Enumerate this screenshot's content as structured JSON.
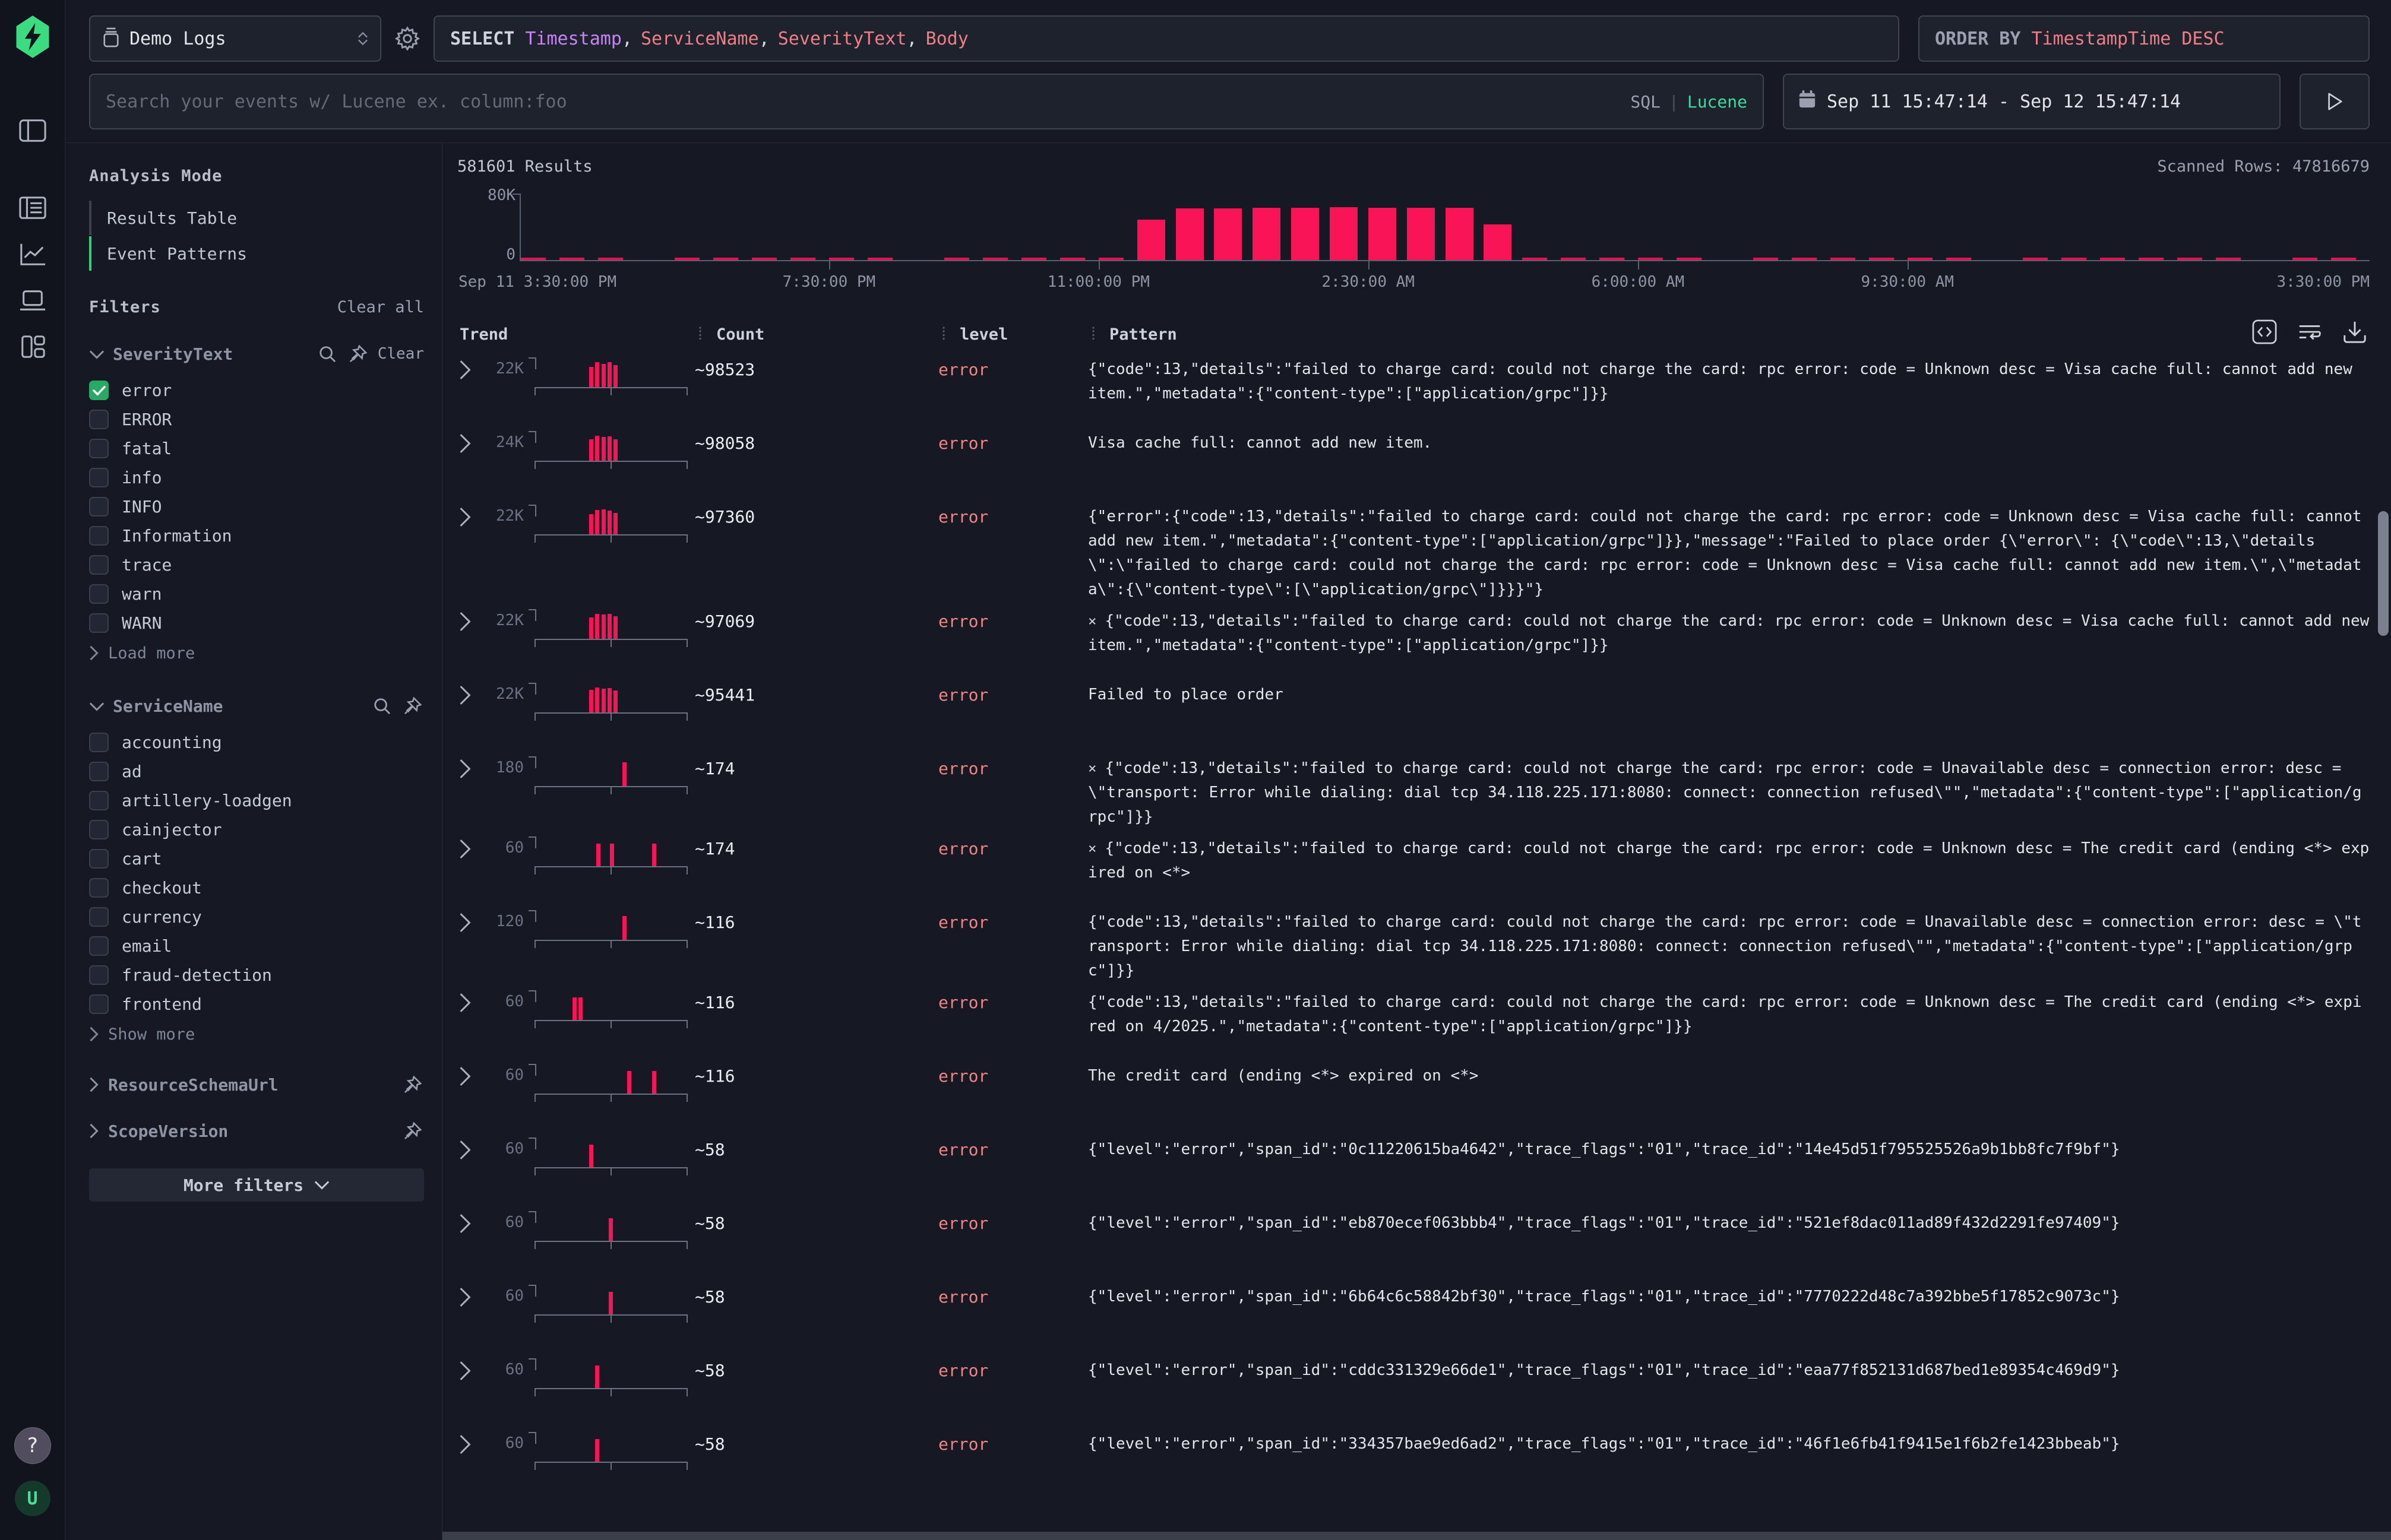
{
  "colors": {
    "accent_green": "#3adc7f",
    "bar_pink": "#f91357",
    "error_text": "#ef8585",
    "purple": "#c585f2",
    "salmon": "#ef7e86"
  },
  "icons": {
    "logo": "hyperdx-hexagon-bolt",
    "sidebar-toggle": "panel-left",
    "logs": "newspaper",
    "chart": "line-chart",
    "sessions": "laptop",
    "dashboards": "layout-grid",
    "help": "?",
    "avatar": "U",
    "source": "database",
    "settings": "gear",
    "calendar": "calendar",
    "run": "play-triangle",
    "search": "magnifier",
    "pin": "pushpin",
    "code": "<>",
    "wrap": "text-wrap-arrow",
    "download": "arrow-into-tray",
    "close": "×"
  },
  "topbar": {
    "source_select": {
      "label": "Demo Logs"
    },
    "query": {
      "keyword": "SELECT",
      "fields": [
        {
          "text": "Timestamp",
          "color": "#c585f2"
        },
        {
          "text": "ServiceName",
          "color": "#ef7e86"
        },
        {
          "text": "SeverityText",
          "color": "#ef7e86"
        },
        {
          "text": "Body",
          "color": "#ef7e86"
        }
      ]
    },
    "order_by": {
      "keyword": "ORDER BY",
      "value": "TimestampTime DESC"
    }
  },
  "searchbar": {
    "placeholder": "Search your events w/ Lucene ex. column:foo",
    "mode_sql": "SQL",
    "mode_divider": "|",
    "mode_lucene": "Lucene",
    "date_range": "Sep 11 15:47:14 - Sep 12 15:47:14"
  },
  "sidebar": {
    "analysis_mode": {
      "title": "Analysis Mode",
      "items": [
        {
          "label": "Results Table",
          "active": false
        },
        {
          "label": "Event Patterns",
          "active": true
        }
      ]
    },
    "filters_title": "Filters",
    "clear_all": "Clear all",
    "severity": {
      "name": "SeverityText",
      "clear": "Clear",
      "load_more": "Load more",
      "options": [
        {
          "label": "error",
          "checked": true
        },
        {
          "label": "ERROR",
          "checked": false
        },
        {
          "label": "fatal",
          "checked": false
        },
        {
          "label": "info",
          "checked": false
        },
        {
          "label": "INFO",
          "checked": false
        },
        {
          "label": "Information",
          "checked": false
        },
        {
          "label": "trace",
          "checked": false
        },
        {
          "label": "warn",
          "checked": false
        },
        {
          "label": "WARN",
          "checked": false
        }
      ]
    },
    "service": {
      "name": "ServiceName",
      "show_more": "Show more",
      "options": [
        {
          "label": "accounting",
          "checked": false
        },
        {
          "label": "ad",
          "checked": false
        },
        {
          "label": "artillery-loadgen",
          "checked": false
        },
        {
          "label": "cainjector",
          "checked": false
        },
        {
          "label": "cart",
          "checked": false
        },
        {
          "label": "checkout",
          "checked": false
        },
        {
          "label": "currency",
          "checked": false
        },
        {
          "label": "email",
          "checked": false
        },
        {
          "label": "fraud-detection",
          "checked": false
        },
        {
          "label": "frontend",
          "checked": false
        }
      ]
    },
    "collapsed_groups": [
      {
        "name": "ResourceSchemaUrl"
      },
      {
        "name": "ScopeVersion"
      }
    ],
    "more_filters": "More filters"
  },
  "results": {
    "count_label": "581601 Results",
    "scanned_label": "Scanned Rows: 47816679"
  },
  "chart_data": {
    "type": "bar",
    "title": "Events over time histogram",
    "ylim": [
      0,
      80000
    ],
    "ytick_labels": [
      "80K",
      "0"
    ],
    "bucket_minutes": 30,
    "x_range": [
      "Sep 11 3:30:00 PM",
      "Sep 12 3:30:00 PM"
    ],
    "x_tick_labels": [
      {
        "t": "Sep 11 3:30:00 PM",
        "f": 0.0
      },
      {
        "t": "7:30:00 PM",
        "f": 0.1667
      },
      {
        "t": "11:00:00 PM",
        "f": 0.3125
      },
      {
        "t": "2:30:00 AM",
        "f": 0.4583
      },
      {
        "t": "6:00:00 AM",
        "f": 0.6042
      },
      {
        "t": "9:30:00 AM",
        "f": 0.75
      },
      {
        "t": "3:30:00 PM",
        "f": 1.0
      }
    ],
    "bars": [
      {
        "time": "11:30 PM",
        "value": 48000,
        "f": 0.3333
      },
      {
        "time": "12:00 AM",
        "value": 61000,
        "f": 0.3542
      },
      {
        "time": "12:30 AM",
        "value": 61000,
        "f": 0.375
      },
      {
        "time": "1:00 AM",
        "value": 62000,
        "f": 0.3958
      },
      {
        "time": "1:30 AM",
        "value": 62000,
        "f": 0.4167
      },
      {
        "time": "2:00 AM",
        "value": 62500,
        "f": 0.4375
      },
      {
        "time": "2:30 AM",
        "value": 62000,
        "f": 0.4583
      },
      {
        "time": "3:00 AM",
        "value": 62000,
        "f": 0.4792
      },
      {
        "time": "3:30 AM",
        "value": 61500,
        "f": 0.5
      },
      {
        "time": "4:00 AM",
        "value": 42000,
        "f": 0.5208
      }
    ],
    "baseline_small_values": true,
    "grid": false,
    "legend": false
  },
  "table": {
    "columns": [
      "Trend",
      "Count",
      "level",
      "Pattern"
    ],
    "rows": [
      {
        "trend_max": "22K",
        "bars": [
          [
            0.36,
            0.82
          ],
          [
            0.4,
            1
          ],
          [
            0.44,
            0.93
          ],
          [
            0.48,
            1
          ],
          [
            0.52,
            0.88
          ]
        ],
        "count": "~98523",
        "level": "error",
        "has_x": false,
        "pattern": "{\"code\":13,\"details\":\"failed to charge card: could not charge the card: rpc error: code = Unknown desc = Visa cache full: cannot add new item.\",\"metadata\":{\"content-type\":[\"application/grpc\"]}}"
      },
      {
        "trend_max": "24K",
        "bars": [
          [
            0.36,
            0.85
          ],
          [
            0.4,
            1
          ],
          [
            0.44,
            0.95
          ],
          [
            0.48,
            0.98
          ],
          [
            0.52,
            0.85
          ]
        ],
        "count": "~98058",
        "level": "error",
        "has_x": false,
        "pattern": "Visa cache full: cannot add new item."
      },
      {
        "trend_max": "22K",
        "bars": [
          [
            0.36,
            0.8
          ],
          [
            0.4,
            0.97
          ],
          [
            0.44,
            1
          ],
          [
            0.48,
            0.95
          ],
          [
            0.52,
            0.85
          ]
        ],
        "count": "~97360",
        "level": "error",
        "has_x": false,
        "pattern": "{\"error\":{\"code\":13,\"details\":\"failed to charge card: could not charge the card: rpc error: code = Unknown desc = Visa cache full: cannot add new item.\",\"metadata\":{\"content-type\":[\"application/grpc\"]}},\"message\":\"Failed to place order {\\\"error\\\": {\\\"code\\\":13,\\\"details\\\":\\\"failed to charge card: could not charge the card: rpc error: code = Unknown desc = Visa cache full: cannot add new item.\\\",\\\"metadata\\\":{\\\"content-type\\\":[\\\"application/grpc\\\"]}}}\"}"
      },
      {
        "trend_max": "22K",
        "bars": [
          [
            0.36,
            0.85
          ],
          [
            0.4,
            1
          ],
          [
            0.44,
            0.97
          ],
          [
            0.48,
            1
          ],
          [
            0.52,
            0.9
          ]
        ],
        "count": "~97069",
        "level": "error",
        "has_x": true,
        "pattern": "{\"code\":13,\"details\":\"failed to charge card: could not charge the card: rpc error: code = Unknown desc = Visa cache full: cannot add new item.\",\"metadata\":{\"content-type\":[\"application/grpc\"]}}"
      },
      {
        "trend_max": "22K",
        "bars": [
          [
            0.36,
            0.9
          ],
          [
            0.4,
            1
          ],
          [
            0.44,
            0.95
          ],
          [
            0.48,
            0.98
          ],
          [
            0.52,
            0.88
          ]
        ],
        "count": "~95441",
        "level": "error",
        "has_x": false,
        "pattern": "Failed to place order"
      },
      {
        "trend_max": "180",
        "bars": [
          [
            0.58,
            0.95
          ]
        ],
        "count": "~174",
        "level": "error",
        "has_x": true,
        "pattern": "{\"code\":13,\"details\":\"failed to charge card: could not charge the card: rpc error: code = Unavailable desc = connection error: desc = \\\"transport: Error while dialing: dial tcp 34.118.225.171:8080: connect: connection refused\\\"\",\"metadata\":{\"content-type\":[\"application/grpc\"]}}"
      },
      {
        "trend_max": "60",
        "bars": [
          [
            0.405,
            0.9
          ],
          [
            0.495,
            0.9
          ],
          [
            0.775,
            0.9
          ]
        ],
        "count": "~174",
        "level": "error",
        "has_x": true,
        "pattern": "{\"code\":13,\"details\":\"failed to charge card: could not charge the card: rpc error: code = Unknown desc = The credit card (ending <*> expired on <*>"
      },
      {
        "trend_max": "120",
        "bars": [
          [
            0.58,
            0.95
          ]
        ],
        "count": "~116",
        "level": "error",
        "has_x": false,
        "pattern": "{\"code\":13,\"details\":\"failed to charge card: could not charge the card: rpc error: code = Unavailable desc = connection error: desc = \\\"transport: Error while dialing: dial tcp 34.118.225.171:8080: connect: connection refused\\\"\",\"metadata\":{\"content-type\":[\"application/grpc\"]}}"
      },
      {
        "trend_max": "60",
        "bars": [
          [
            0.25,
            0.9
          ],
          [
            0.29,
            0.9
          ]
        ],
        "count": "~116",
        "level": "error",
        "has_x": false,
        "pattern": "{\"code\":13,\"details\":\"failed to charge card: could not charge the card: rpc error: code = Unknown desc = The credit card (ending <*> expired on 4/2025.\",\"metadata\":{\"content-type\":[\"application/grpc\"]}}"
      },
      {
        "trend_max": "60",
        "bars": [
          [
            0.61,
            0.9
          ],
          [
            0.775,
            0.9
          ]
        ],
        "count": "~116",
        "level": "error",
        "has_x": false,
        "pattern": "The credit card (ending <*> expired on <*>"
      },
      {
        "trend_max": "60",
        "bars": [
          [
            0.36,
            0.9
          ]
        ],
        "count": "~58",
        "level": "error",
        "has_x": false,
        "pattern": "{\"level\":\"error\",\"span_id\":\"0c11220615ba4642\",\"trace_flags\":\"01\",\"trace_id\":\"14e45d51f795525526a9b1bb8fc7f9bf\"}"
      },
      {
        "trend_max": "60",
        "bars": [
          [
            0.49,
            0.9
          ]
        ],
        "count": "~58",
        "level": "error",
        "has_x": false,
        "pattern": "{\"level\":\"error\",\"span_id\":\"eb870ecef063bbb4\",\"trace_flags\":\"01\",\"trace_id\":\"521ef8dac011ad89f432d2291fe97409\"}"
      },
      {
        "trend_max": "60",
        "bars": [
          [
            0.49,
            0.9
          ]
        ],
        "count": "~58",
        "level": "error",
        "has_x": false,
        "pattern": "{\"level\":\"error\",\"span_id\":\"6b64c6c58842bf30\",\"trace_flags\":\"01\",\"trace_id\":\"7770222d48c7a392bbe5f17852c9073c\"}"
      },
      {
        "trend_max": "60",
        "bars": [
          [
            0.4,
            0.9
          ]
        ],
        "count": "~58",
        "level": "error",
        "has_x": false,
        "pattern": "{\"level\":\"error\",\"span_id\":\"cddc331329e66de1\",\"trace_flags\":\"01\",\"trace_id\":\"eaa77f852131d687bed1e89354c469d9\"}"
      },
      {
        "trend_max": "60",
        "bars": [
          [
            0.4,
            0.9
          ]
        ],
        "count": "~58",
        "level": "error",
        "has_x": false,
        "pattern": "{\"level\":\"error\",\"span_id\":\"334357bae9ed6ad2\",\"trace_flags\":\"01\",\"trace_id\":\"46f1e6fb41f9415e1f6b2fe1423bbeab\"}"
      }
    ]
  }
}
